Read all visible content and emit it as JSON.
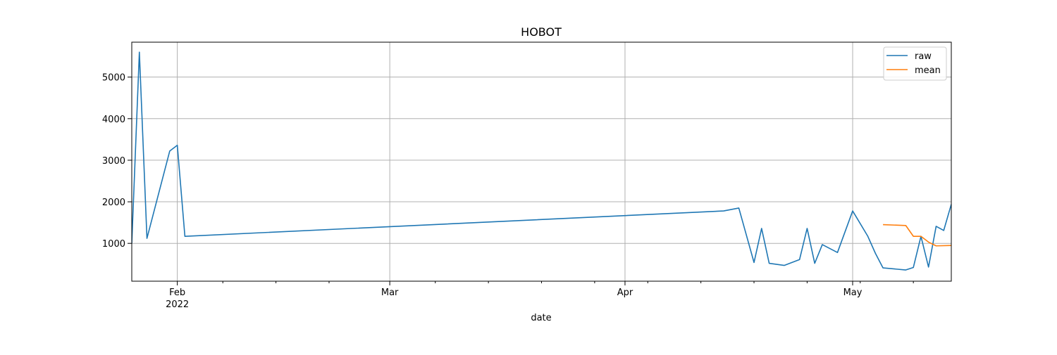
{
  "chart_data": {
    "type": "line",
    "title": "HOBOT",
    "xlabel": "date",
    "ylabel": "",
    "x_range": [
      "2022-01-26",
      "2022-05-14"
    ],
    "ylim": [
      90,
      5840
    ],
    "grid": true,
    "legend_position": "top-right",
    "x_ticks": [
      {
        "date": "2022-02-01",
        "label": "Feb",
        "sublabel": "2022"
      },
      {
        "date": "2022-03-01",
        "label": "Mar",
        "sublabel": ""
      },
      {
        "date": "2022-04-01",
        "label": "Apr",
        "sublabel": ""
      },
      {
        "date": "2022-05-01",
        "label": "May",
        "sublabel": ""
      }
    ],
    "x_minor_ticks": [
      "2022-02-07",
      "2022-02-14",
      "2022-02-21",
      "2022-03-07",
      "2022-03-14",
      "2022-03-21",
      "2022-03-28",
      "2022-04-04",
      "2022-04-11",
      "2022-04-18",
      "2022-04-25",
      "2022-05-02",
      "2022-05-09"
    ],
    "y_ticks": [
      1000,
      2000,
      3000,
      4000,
      5000
    ],
    "series": [
      {
        "name": "raw",
        "color": "#1f77b4",
        "points": [
          {
            "x": "2022-01-26",
            "y": 1000
          },
          {
            "x": "2022-01-27",
            "y": 5600
          },
          {
            "x": "2022-01-28",
            "y": 1120
          },
          {
            "x": "2022-01-31",
            "y": 3220
          },
          {
            "x": "2022-02-01",
            "y": 3360
          },
          {
            "x": "2022-02-02",
            "y": 1170
          },
          {
            "x": "2022-04-14",
            "y": 1780
          },
          {
            "x": "2022-04-16",
            "y": 1850
          },
          {
            "x": "2022-04-18",
            "y": 540
          },
          {
            "x": "2022-04-19",
            "y": 1360
          },
          {
            "x": "2022-04-20",
            "y": 520
          },
          {
            "x": "2022-04-22",
            "y": 470
          },
          {
            "x": "2022-04-24",
            "y": 610
          },
          {
            "x": "2022-04-25",
            "y": 1360
          },
          {
            "x": "2022-04-26",
            "y": 520
          },
          {
            "x": "2022-04-27",
            "y": 970
          },
          {
            "x": "2022-04-29",
            "y": 780
          },
          {
            "x": "2022-05-01",
            "y": 1780
          },
          {
            "x": "2022-05-03",
            "y": 1170
          },
          {
            "x": "2022-05-04",
            "y": 760
          },
          {
            "x": "2022-05-05",
            "y": 410
          },
          {
            "x": "2022-05-08",
            "y": 360
          },
          {
            "x": "2022-05-09",
            "y": 420
          },
          {
            "x": "2022-05-10",
            "y": 1170
          },
          {
            "x": "2022-05-11",
            "y": 430
          },
          {
            "x": "2022-05-12",
            "y": 1410
          },
          {
            "x": "2022-05-13",
            "y": 1310
          },
          {
            "x": "2022-05-14",
            "y": 1940
          }
        ]
      },
      {
        "name": "mean",
        "color": "#ff7f0e",
        "points": [
          {
            "x": "2022-05-05",
            "y": 1450
          },
          {
            "x": "2022-05-08",
            "y": 1430
          },
          {
            "x": "2022-05-09",
            "y": 1170
          },
          {
            "x": "2022-05-10",
            "y": 1170
          },
          {
            "x": "2022-05-11",
            "y": 1030
          },
          {
            "x": "2022-05-12",
            "y": 940
          },
          {
            "x": "2022-05-14",
            "y": 950
          }
        ]
      }
    ]
  }
}
